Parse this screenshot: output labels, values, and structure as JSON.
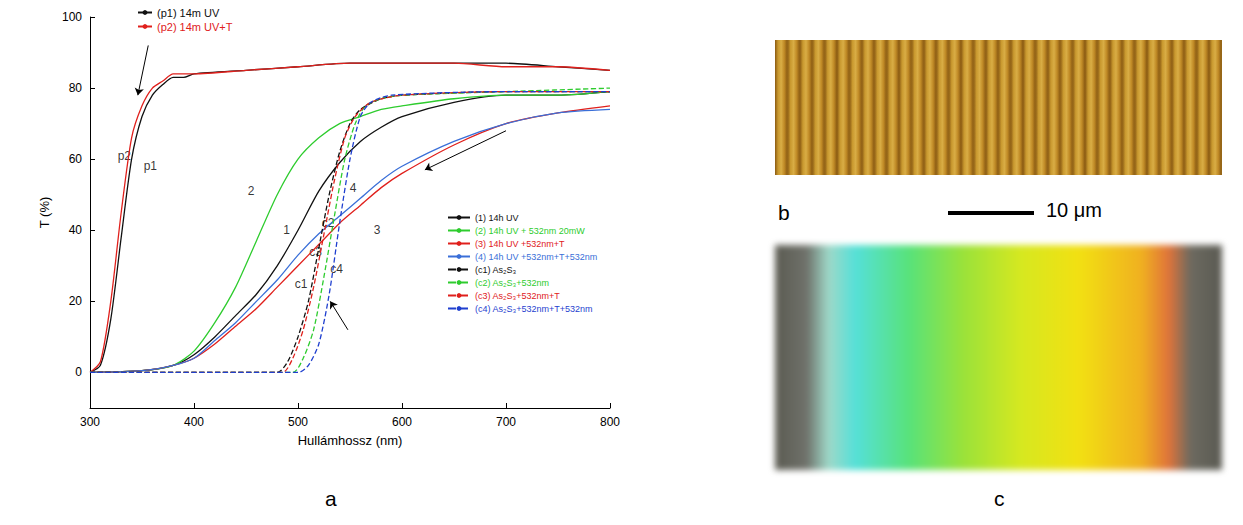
{
  "chart_data": {
    "type": "line",
    "x_label": "Hullámhossz (nm)",
    "y_label": "T (%)",
    "xlim": [
      300,
      800
    ],
    "xticks": [
      300,
      400,
      500,
      600,
      700,
      800
    ],
    "ylim": [
      -10,
      100
    ],
    "yticks": [
      0,
      20,
      40,
      60,
      80,
      100
    ],
    "grid": false,
    "legend": "inside",
    "series": [
      {
        "name": "(p1) 14m UV",
        "color": "#111111",
        "line_style": "solid",
        "x": [
          300,
          310,
          320,
          330,
          340,
          350,
          360,
          370,
          380,
          390,
          400,
          450,
          500,
          550,
          600,
          650,
          700,
          750,
          800
        ],
        "values": [
          0,
          2,
          15,
          38,
          60,
          72,
          78,
          81,
          83,
          83,
          84,
          85,
          86,
          87,
          87,
          87,
          87,
          86,
          85
        ]
      },
      {
        "name": "(p2) 14m UV+T",
        "color": "#e0201c",
        "line_style": "solid",
        "x": [
          300,
          310,
          320,
          330,
          340,
          350,
          360,
          370,
          380,
          390,
          400,
          450,
          500,
          550,
          600,
          650,
          700,
          750,
          800
        ],
        "values": [
          0,
          3,
          20,
          45,
          66,
          75,
          80,
          82,
          84,
          84,
          84,
          85,
          86,
          87,
          87,
          87,
          86,
          86,
          85
        ]
      },
      {
        "name": "(1) 14h UV",
        "color": "#111111",
        "line_style": "solid",
        "x": [
          300,
          350,
          380,
          400,
          420,
          440,
          460,
          480,
          500,
          520,
          540,
          560,
          580,
          600,
          650,
          700,
          750,
          800
        ],
        "values": [
          0,
          0.5,
          2,
          5,
          10,
          16,
          22,
          30,
          40,
          51,
          59,
          65,
          69,
          72,
          76,
          78,
          78,
          79
        ]
      },
      {
        "name": "(2) 14h UV + 532nm 20mW",
        "color": "#2ecc2e",
        "line_style": "solid",
        "x": [
          300,
          350,
          380,
          400,
          420,
          440,
          460,
          480,
          500,
          520,
          540,
          560,
          580,
          600,
          650,
          700,
          750,
          800
        ],
        "values": [
          0,
          0.5,
          2,
          6,
          14,
          24,
          37,
          50,
          60,
          66,
          70,
          72,
          74,
          75,
          77,
          78,
          78,
          79
        ]
      },
      {
        "name": "(3) 14h UV +532nm+T",
        "color": "#e0201c",
        "line_style": "solid",
        "x": [
          300,
          350,
          380,
          400,
          420,
          440,
          460,
          480,
          500,
          520,
          540,
          560,
          580,
          600,
          650,
          700,
          750,
          800
        ],
        "values": [
          0,
          0.5,
          2,
          4,
          8,
          13,
          18,
          24,
          30,
          36,
          42,
          47,
          52,
          56,
          64,
          70,
          73,
          75
        ]
      },
      {
        "name": "(4) 14h UV +532nm+T+532nm",
        "color": "#3a6fd8",
        "line_style": "solid",
        "x": [
          300,
          350,
          380,
          400,
          420,
          440,
          460,
          480,
          500,
          520,
          540,
          560,
          580,
          600,
          650,
          700,
          750,
          800
        ],
        "values": [
          0,
          0.5,
          2,
          4,
          9,
          14,
          20,
          26,
          33,
          39,
          44,
          49,
          54,
          58,
          65,
          70,
          73,
          74
        ]
      },
      {
        "name": "(c1) As₂S₃",
        "color": "#111111",
        "line_style": "dashed",
        "x": [
          300,
          480,
          490,
          500,
          510,
          520,
          530,
          540,
          550,
          560,
          580,
          600,
          700,
          800
        ],
        "values": [
          0,
          0,
          3,
          10,
          20,
          35,
          50,
          62,
          70,
          74,
          77,
          78,
          79,
          79
        ]
      },
      {
        "name": "(c2) As₂S₃+532nm",
        "color": "#2ecc2e",
        "line_style": "dashed",
        "x": [
          300,
          495,
          505,
          515,
          525,
          535,
          545,
          555,
          565,
          580,
          600,
          700,
          800
        ],
        "values": [
          0,
          0,
          4,
          12,
          27,
          44,
          60,
          70,
          75,
          77,
          78,
          79,
          80
        ]
      },
      {
        "name": "(c3) As₂S₃+532nm+T",
        "color": "#e0201c",
        "line_style": "dashed",
        "x": [
          300,
          485,
          495,
          505,
          515,
          525,
          535,
          545,
          555,
          570,
          600,
          700,
          800
        ],
        "values": [
          0,
          0,
          4,
          12,
          24,
          39,
          54,
          66,
          72,
          76,
          78,
          79,
          79
        ]
      },
      {
        "name": "(c4) As₂S₃+532nm+T+532nm",
        "color": "#1f3fcf",
        "line_style": "dashed",
        "x": [
          300,
          500,
          510,
          520,
          530,
          540,
          550,
          560,
          570,
          590,
          700,
          800
        ],
        "values": [
          0,
          0,
          2,
          8,
          22,
          42,
          60,
          72,
          76,
          78,
          79,
          79
        ]
      }
    ],
    "annotations": [
      {
        "text": "p2",
        "x": 333,
        "y": 61
      },
      {
        "text": "p1",
        "x": 358,
        "y": 58
      },
      {
        "text": "2",
        "x": 455,
        "y": 51
      },
      {
        "text": "1",
        "x": 489,
        "y": 40
      },
      {
        "text": "4",
        "x": 553,
        "y": 52
      },
      {
        "text": "3",
        "x": 576,
        "y": 40
      },
      {
        "text": "c1",
        "x": 503,
        "y": 25
      },
      {
        "text": "c3",
        "x": 517,
        "y": 34
      },
      {
        "text": "c2",
        "x": 529,
        "y": 42
      },
      {
        "text": "c4",
        "x": 537,
        "y": 29
      }
    ],
    "arrows": [
      {
        "from": [
          356,
          92
        ],
        "to": [
          346,
          78
        ]
      },
      {
        "from": [
          700,
          68
        ],
        "to": [
          622,
          57
        ]
      },
      {
        "from": [
          548,
          12
        ],
        "to": [
          531,
          20
        ]
      }
    ]
  },
  "panels": {
    "a": {
      "letter": "a"
    },
    "b": {
      "letter": "b",
      "scale_bar": "10 μm"
    },
    "c": {
      "letter": "c"
    }
  }
}
